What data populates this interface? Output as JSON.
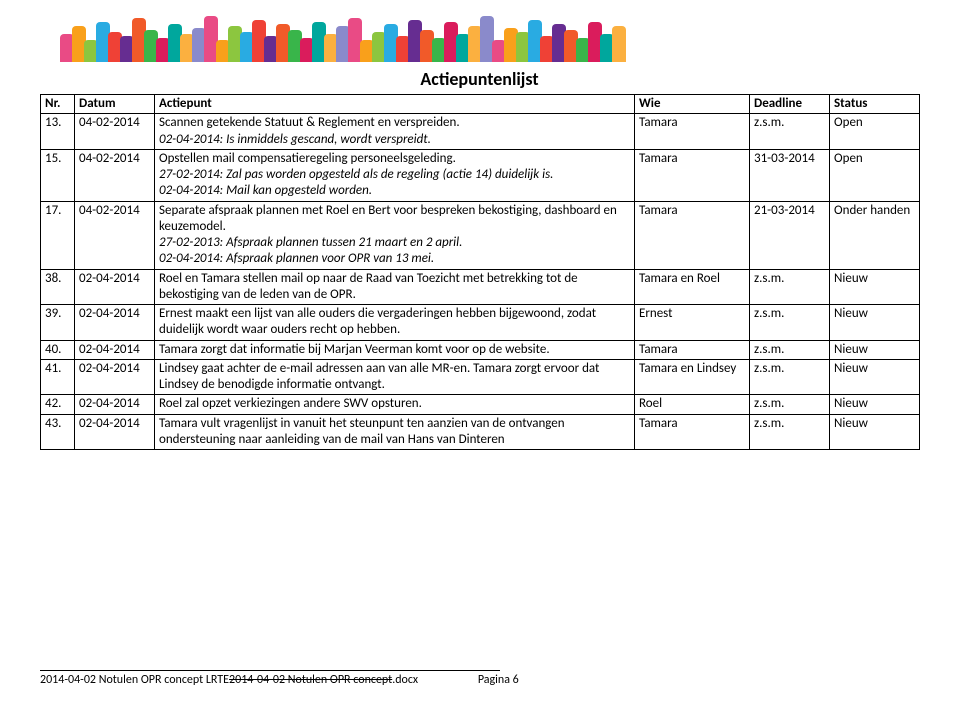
{
  "banner": {
    "colors": [
      "#e94b85",
      "#f9a01b",
      "#8cc63f",
      "#29abe2",
      "#ef4136",
      "#662d91",
      "#f15a29",
      "#39b54a",
      "#da1c5c",
      "#00a79d",
      "#fbb040",
      "#8a8acb",
      "#e94b85",
      "#f9a01b",
      "#8cc63f",
      "#29abe2",
      "#ef4136",
      "#662d91",
      "#f15a29",
      "#39b54a",
      "#da1c5c",
      "#00a79d",
      "#fbb040",
      "#8a8acb",
      "#e94b85",
      "#f9a01b",
      "#8cc63f",
      "#29abe2",
      "#ef4136",
      "#662d91",
      "#f15a29",
      "#39b54a",
      "#da1c5c",
      "#00a79d",
      "#fbb040",
      "#8a8acb",
      "#e94b85",
      "#f9a01b",
      "#8cc63f",
      "#29abe2",
      "#ef4136",
      "#662d91",
      "#f15a29",
      "#39b54a",
      "#da1c5c",
      "#00a79d",
      "#fbb040"
    ],
    "heights": [
      28,
      36,
      22,
      40,
      30,
      26,
      44,
      32,
      24,
      38,
      28,
      34,
      46,
      22,
      36,
      30,
      42,
      26,
      38,
      32,
      24,
      40,
      28,
      36,
      44,
      22,
      30,
      38,
      26,
      42,
      32,
      24,
      40,
      28,
      36,
      46,
      22,
      34,
      30,
      42,
      26,
      38,
      32,
      24,
      40,
      28,
      36
    ]
  },
  "title": "Actiepuntenlijst",
  "columns": [
    "Nr.",
    "Datum",
    "Actiepunt",
    "Wie",
    "Deadline",
    "Status"
  ],
  "rows": [
    {
      "nr": "13.",
      "datum": "04-02-2014",
      "actie_main": "Scannen getekende Statuut & Reglement en verspreiden.",
      "actie_sub": "02-04-2014: Is inmiddels gescand, wordt verspreidt.",
      "wie": "Tamara",
      "deadline": "z.s.m.",
      "status": "Open"
    },
    {
      "nr": "15.",
      "datum": "04-02-2014",
      "actie_main": "Opstellen mail compensatieregeling personeelsgeleding.",
      "actie_sub": "27-02-2014: Zal pas worden opgesteld als de regeling (actie 14) duidelijk is.\n02-04-2014: Mail kan opgesteld worden.",
      "wie": "Tamara",
      "deadline": "31-03-2014",
      "status": "Open"
    },
    {
      "nr": "17.",
      "datum": "04-02-2014",
      "actie_main": "Separate afspraak plannen met Roel en Bert voor bespreken bekostiging, dashboard en keuzemodel.",
      "actie_sub": "27-02-2013: Afspraak plannen tussen 21 maart en 2 april.\n02-04-2014: Afspraak plannen voor OPR van 13 mei.",
      "wie": "Tamara",
      "deadline": "21-03-2014",
      "status": "Onder handen"
    },
    {
      "nr": "38.",
      "datum": "02-04-2014",
      "actie_main": "Roel en Tamara stellen mail op naar de Raad van Toezicht met betrekking tot de bekostiging van de leden van de OPR.",
      "actie_sub": "",
      "wie": "Tamara en Roel",
      "deadline": "z.s.m.",
      "status": "Nieuw"
    },
    {
      "nr": "39.",
      "datum": "02-04-2014",
      "actie_main": "Ernest maakt een lijst van alle ouders die vergaderingen hebben bijgewoond, zodat duidelijk wordt waar ouders recht op hebben.",
      "actie_sub": "",
      "wie": "Ernest",
      "deadline": "z.s.m.",
      "status": "Nieuw"
    },
    {
      "nr": "40.",
      "datum": "02-04-2014",
      "actie_main": "Tamara zorgt dat informatie bij Marjan Veerman komt voor op de website.",
      "actie_sub": "",
      "wie": "Tamara",
      "deadline": "z.s.m.",
      "status": "Nieuw"
    },
    {
      "nr": "41.",
      "datum": "02-04-2014",
      "actie_main": "Lindsey gaat achter de e-mail adressen aan van alle MR-en. Tamara zorgt ervoor dat Lindsey de benodigde informatie ontvangt.",
      "actie_sub": "",
      "wie": "Tamara en Lindsey",
      "deadline": "z.s.m.",
      "status": "Nieuw"
    },
    {
      "nr": "42.",
      "datum": "02-04-2014",
      "actie_main": "Roel zal opzet verkiezingen andere SWV opsturen.",
      "actie_sub": "",
      "wie": "Roel",
      "deadline": "z.s.m.",
      "status": "Nieuw"
    },
    {
      "nr": "43.",
      "datum": "02-04-2014",
      "actie_main": "Tamara vult vragenlijst in vanuit het steunpunt ten aanzien van de ontvangen ondersteuning naar aanleiding van de mail van Hans van Dinteren",
      "actie_sub": "",
      "wie": "Tamara",
      "deadline": "z.s.m.",
      "status": "Nieuw"
    }
  ],
  "footer": {
    "keep": "2014-04-02 Notulen OPR concept LRTE",
    "strike": "2014-04-02 Notulen OPR concept",
    "ext": ".docx",
    "page": "Pagina 6"
  }
}
